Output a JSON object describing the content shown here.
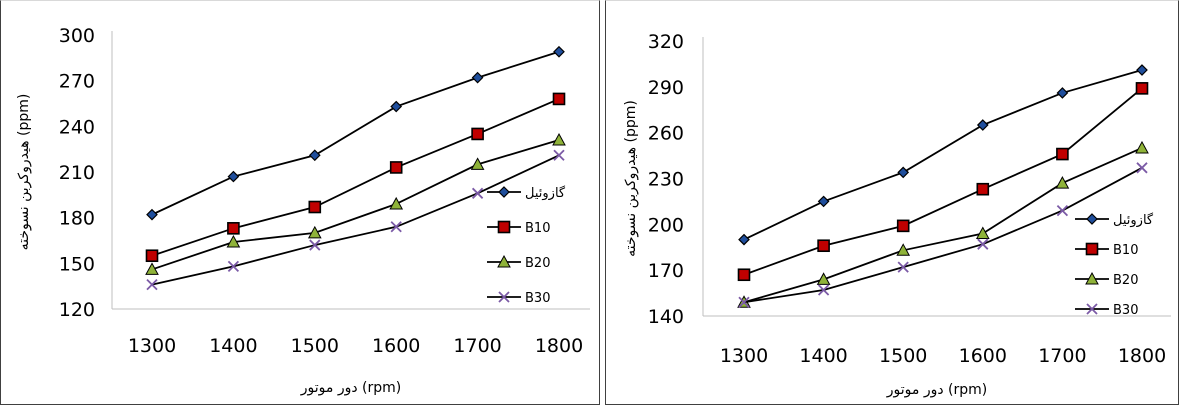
{
  "chart_data": [
    {
      "type": "line",
      "categories": [
        "1300",
        "1400",
        "1500",
        "1600",
        "1700",
        "1800"
      ],
      "xlabel": "دور موتور (rpm)",
      "ylabel": "هیدروکربن نسوخته (ppm)",
      "ylim": [
        120,
        300
      ],
      "yticks": [
        120,
        150,
        180,
        210,
        240,
        270,
        300
      ],
      "grid": false,
      "legend_position": "right",
      "series": [
        {
          "name": "گازوئیل",
          "values": [
            182,
            207,
            221,
            253,
            272,
            289
          ],
          "color": "#000000",
          "marker": "diamond",
          "marker_color": "#1f4e9c"
        },
        {
          "name": "B10",
          "values": [
            155,
            173,
            187,
            213,
            235,
            258
          ],
          "color": "#000000",
          "marker": "square",
          "marker_color": "#c00000"
        },
        {
          "name": "B20",
          "values": [
            146,
            164,
            170,
            189,
            215,
            231
          ],
          "color": "#000000",
          "marker": "triangle",
          "marker_color": "#8fb339"
        },
        {
          "name": "B30",
          "values": [
            136,
            148,
            162,
            174,
            196,
            221
          ],
          "color": "#000000",
          "marker": "x",
          "marker_color": "#7b5aa6"
        }
      ]
    },
    {
      "type": "line",
      "categories": [
        "1300",
        "1400",
        "1500",
        "1600",
        "1700",
        "1800"
      ],
      "xlabel": "دور موتور (rpm)",
      "ylabel": "هیدروکربن نسوخته (ppm)",
      "ylim": [
        140,
        320
      ],
      "yticks": [
        140,
        170,
        200,
        230,
        260,
        290,
        320
      ],
      "grid": false,
      "legend_position": "right",
      "series": [
        {
          "name": "گازوئیل",
          "values": [
            190,
            215,
            234,
            265,
            286,
            301
          ],
          "color": "#000000",
          "marker": "diamond",
          "marker_color": "#1f4e9c"
        },
        {
          "name": "B10",
          "values": [
            167,
            186,
            199,
            223,
            246,
            289
          ],
          "color": "#000000",
          "marker": "square",
          "marker_color": "#c00000"
        },
        {
          "name": "B20",
          "values": [
            149,
            164,
            183,
            194,
            227,
            250
          ],
          "color": "#000000",
          "marker": "triangle",
          "marker_color": "#8fb339"
        },
        {
          "name": "B30",
          "values": [
            149,
            157,
            172,
            187,
            209,
            237
          ],
          "color": "#000000",
          "marker": "x",
          "marker_color": "#7b5aa6"
        }
      ]
    }
  ]
}
